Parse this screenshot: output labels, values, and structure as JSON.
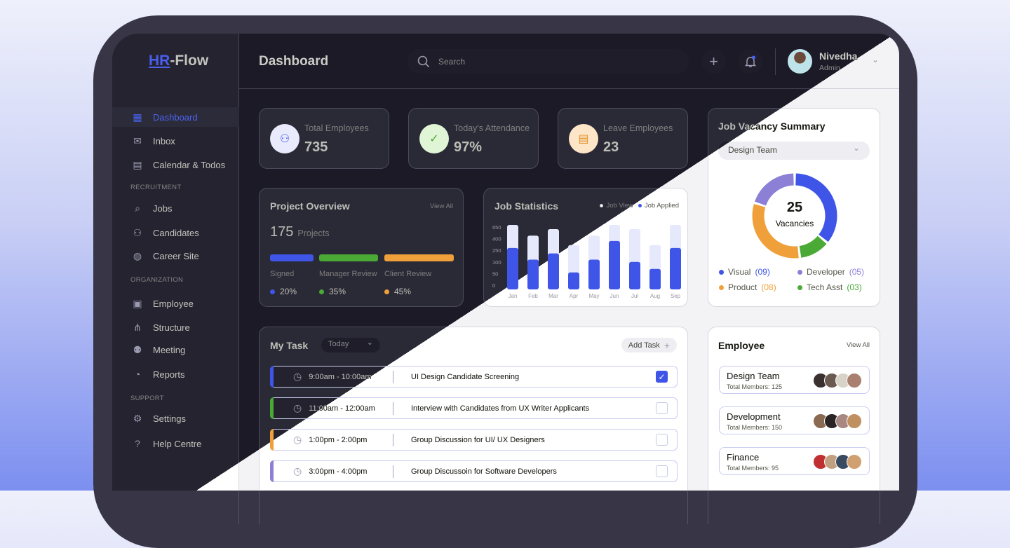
{
  "app": {
    "logo_hr": "HR",
    "logo_rest": "-Flow",
    "page_title": "Dashboard"
  },
  "search": {
    "placeholder": "Search"
  },
  "user": {
    "name": "Nivedha",
    "role": "Admin"
  },
  "sidebar": {
    "items": [
      {
        "label": "Dashboard",
        "icon": "grid-icon"
      },
      {
        "label": "Inbox",
        "icon": "inbox-icon"
      },
      {
        "label": "Calendar & Todos",
        "icon": "calendar-icon"
      },
      {
        "label": "Jobs",
        "icon": "jobs-icon"
      },
      {
        "label": "Candidates",
        "icon": "users-icon"
      },
      {
        "label": "Career Site",
        "icon": "globe-icon"
      },
      {
        "label": "Employee",
        "icon": "id-card-icon"
      },
      {
        "label": "Structure",
        "icon": "hierarchy-icon"
      },
      {
        "label": "Meeting",
        "icon": "meeting-icon"
      },
      {
        "label": "Reports",
        "icon": "pie-icon"
      },
      {
        "label": "Settings",
        "icon": "gear-icon"
      },
      {
        "label": "Help Centre",
        "icon": "help-icon"
      }
    ],
    "sections": [
      "RECRUITMENT",
      "ORGANIZATION",
      "SUPPORT"
    ]
  },
  "stats": [
    {
      "label": "Total Employees",
      "value": "735",
      "color": "#e9ebfd"
    },
    {
      "label": "Today's Attendance",
      "value": "97%",
      "color": "#dff5d6"
    },
    {
      "label": "Leave Employees",
      "value": "23",
      "color": "#fde6c8"
    }
  ],
  "project": {
    "title": "Project Overview",
    "view_all": "View All",
    "count": "175",
    "count_label": "Projects",
    "segments": [
      {
        "label": "Signed",
        "pct": "20%",
        "color": "#3f55e8"
      },
      {
        "label": "Manager Review",
        "pct": "35%",
        "color": "#4aaa35"
      },
      {
        "label": "Client Review",
        "pct": "45%",
        "color": "#f0a03a"
      }
    ]
  },
  "chart_data": {
    "type": "bar",
    "title": "Job Statistics",
    "categories": [
      "Jan",
      "Feb",
      "Mar",
      "Apr",
      "May",
      "Jun",
      "Jul",
      "Aug",
      "Sep"
    ],
    "yticks": [
      0,
      50,
      100,
      250,
      400,
      650
    ],
    "series": [
      {
        "name": "Job View",
        "values": [
          650,
          420,
          560,
          290,
          420,
          650,
          560,
          290,
          650
        ],
        "color": "#e6e8fb"
      },
      {
        "name": "Job Applied",
        "values": [
          280,
          130,
          210,
          55,
          130,
          370,
          100,
          70,
          280
        ],
        "color": "#3f55e8"
      }
    ],
    "legend": "top-right",
    "overlap": true
  },
  "vacancy": {
    "title": "Job Vacancy Summary",
    "filter": "Design Team",
    "total": "25",
    "total_label": "Vacancies",
    "slices": [
      {
        "label": "Visual",
        "count": "(09)",
        "value": 9,
        "color": "#3f55e8"
      },
      {
        "label": "Tech Asst",
        "count": "(03)",
        "value": 3,
        "color": "#4aaa35"
      },
      {
        "label": "Product",
        "count": "(08)",
        "value": 8,
        "color": "#f0a03a"
      },
      {
        "label": "Developer",
        "count": "(05)",
        "value": 5,
        "color": "#8b7fd6"
      }
    ]
  },
  "tasks": {
    "title": "My Task",
    "filter": "Today",
    "add_label": "Add Task",
    "items": [
      {
        "time": "9:00am - 10:00am",
        "text": "UI Design Candidate Screening",
        "color": "#3f55e8",
        "done": true
      },
      {
        "time": "11:00am - 12:00am",
        "text": "Interview with Candidates from UX Writer Applicants",
        "color": "#4aaa35",
        "done": false
      },
      {
        "time": "1:00pm - 2:00pm",
        "text": "Group Discussion for UI/ UX Designers",
        "color": "#f0a03a",
        "done": false
      },
      {
        "time": "3:00pm - 4:00pm",
        "text": "Group Discussoin for Software  Developers",
        "color": "#8b7fd6",
        "done": false
      }
    ]
  },
  "employee": {
    "title": "Employee",
    "view_all": "View All",
    "teams": [
      {
        "name": "Design Team",
        "members": "Total Members: 125"
      },
      {
        "name": "Development",
        "members": "Total Members: 150"
      },
      {
        "name": "Finance",
        "members": "Total Members: 95"
      }
    ]
  }
}
